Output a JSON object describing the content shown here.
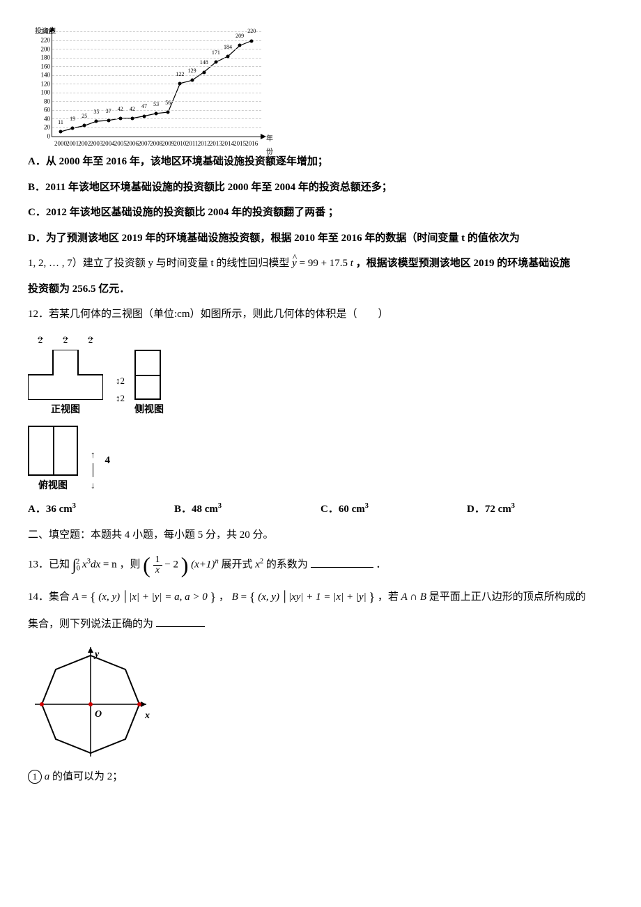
{
  "chart": {
    "ylabel": "投资额",
    "xlabel": "年份",
    "ymax": 240,
    "ymin": 0,
    "ytick_step": 20,
    "grid_color": "#cccccc",
    "years": [
      2000,
      2001,
      2002,
      2003,
      2004,
      2005,
      2006,
      2007,
      2008,
      2009,
      2010,
      2011,
      2012,
      2013,
      2014,
      2015,
      2016
    ],
    "values": [
      11,
      19,
      25,
      35,
      37,
      42,
      42,
      47,
      53,
      56,
      122,
      129,
      148,
      171,
      184,
      209,
      220
    ],
    "point_color": "#000000",
    "line_color": "#000000"
  },
  "stmtA": "A．从 2000 年至 2016 年，该地区环境基础设施投资额逐年增加；",
  "stmtB": "B．2011 年该地区环境基础设施的投资额比 2000 年至 2004 年的投资总额还多；",
  "stmtC": "C．2012 年该地区基础设施的投资额比 2004 年的投资额翻了两番 ；",
  "stmtD1": "D．为了预测该地区 2019 年的环境基础设施投资额，根据 2010 年至 2016 年的数据（时间变量 t 的值依次为",
  "stmtD2a": "1, 2, … , 7）建立了投资额 y 与时间变量 t 的线性回归模型 ",
  "stmtD2b": "，根据该模型预测该地区 2019 的环境基础设施",
  "stmtD3": "投资额为 256.5 亿元．",
  "regression": {
    "lhs": "y",
    "a": "99",
    "b": "17.5",
    "var": "t"
  },
  "q12": "12．若某几何体的三视图（单位:cm）如图所示，则此几何体的体积是（　　）",
  "views": {
    "seg": "2",
    "front": "正视图",
    "side": "侧视图",
    "top": "俯视图",
    "h_seg": "2",
    "h4": "4"
  },
  "q12opts": {
    "A": "A．36 cm",
    "B": "B．48 cm",
    "C": "C．60 cm",
    "D": "D．72 cm",
    "unit_sup": "3"
  },
  "sec2": "二、填空题：本题共 4 小题，每小题 5 分，共 20 分。",
  "q13a": "13．已知",
  "q13int": {
    "lo": "0",
    "hi": "2",
    "body": "x",
    "exp": "3",
    "dx": "dx",
    "eq": " = n"
  },
  "q13b": "，则 ",
  "q13paren": {
    "num": "1",
    "den": "x",
    "minus": " − 2"
  },
  "q13c": "(x+1)",
  "q13exp_n": "n",
  "q13d": " 展开式 ",
  "q13e": "x",
  "q13e_exp": "2",
  "q13f": " 的系数为",
  "q13g": "．",
  "q14a": "14．集合 ",
  "q14A": "A",
  "q14eq": " = ",
  "q14setA": "(x, y) │|x| + |y| = a, a > 0",
  "q14comma": "， ",
  "q14B": "B",
  "q14setB": "(x, y) │|xy| + 1 = |x| + |y|",
  "q14b": "，若 ",
  "q14AB": "A ∩ B",
  "q14c": " 是平面上正八边形的顶点所构成的",
  "q14d": "集合，则下列说法正确的为",
  "oct": {
    "O": "O",
    "x": "x",
    "y": "y",
    "stroke": "#000000",
    "red": "#d00000"
  },
  "stmt1": " 的值可以为 2；",
  "stmt1var": "a",
  "circ1": "1"
}
